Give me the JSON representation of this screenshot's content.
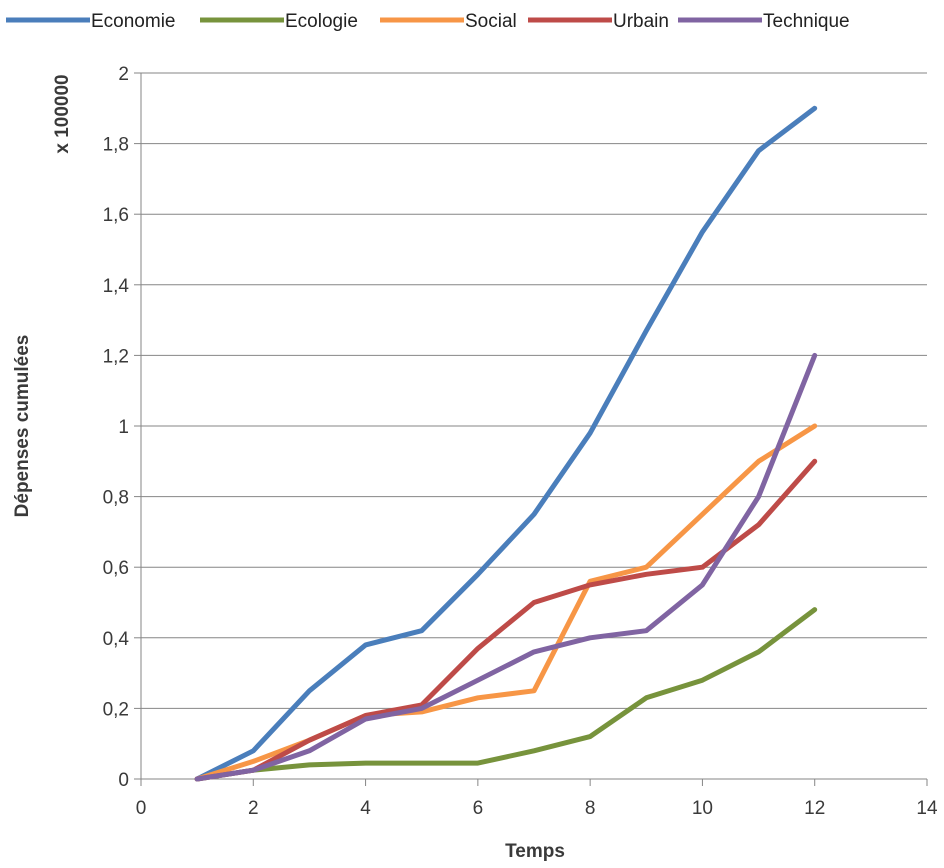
{
  "chart_data": {
    "type": "line",
    "xlabel": "Temps",
    "ylabel": "Dépenses cumulées",
    "y_unit": "x 100000",
    "xlim": [
      0,
      14
    ],
    "ylim": [
      0,
      2
    ],
    "x_ticks": [
      0,
      2,
      4,
      6,
      8,
      10,
      12,
      14
    ],
    "y_ticks": [
      0,
      0.2,
      0.4,
      0.6,
      0.8,
      1,
      1.2,
      1.4,
      1.6,
      1.8,
      2
    ],
    "y_tick_labels": [
      "0",
      "0,2",
      "0,4",
      "0,6",
      "0,8",
      "1",
      "1,2",
      "1,4",
      "1,6",
      "1,8",
      "2"
    ],
    "grid": "horizontal",
    "legend_position": "top",
    "x": [
      1,
      2,
      3,
      4,
      5,
      6,
      7,
      8,
      9,
      10,
      11,
      12
    ],
    "series": [
      {
        "name": "Economie",
        "color": "#4a7ebb",
        "values": [
          0,
          0.08,
          0.25,
          0.38,
          0.42,
          0.58,
          0.75,
          0.98,
          1.27,
          1.55,
          1.78,
          1.9
        ]
      },
      {
        "name": "Ecologie",
        "color": "#77933c",
        "values": [
          0,
          0.025,
          0.04,
          0.045,
          0.045,
          0.045,
          0.08,
          0.12,
          0.23,
          0.28,
          0.36,
          0.48
        ]
      },
      {
        "name": "Social",
        "color": "#f79646",
        "values": [
          0,
          0.05,
          0.11,
          0.18,
          0.19,
          0.23,
          0.25,
          0.56,
          0.6,
          0.75,
          0.9,
          1.0
        ]
      },
      {
        "name": "Urbain",
        "color": "#be4b48",
        "values": [
          0,
          0.025,
          0.11,
          0.18,
          0.21,
          0.37,
          0.5,
          0.55,
          0.58,
          0.6,
          0.72,
          0.9
        ]
      },
      {
        "name": "Technique",
        "color": "#8064a2",
        "values": [
          0,
          0.025,
          0.08,
          0.17,
          0.2,
          0.28,
          0.36,
          0.4,
          0.42,
          0.55,
          0.8,
          1.2
        ]
      }
    ]
  }
}
